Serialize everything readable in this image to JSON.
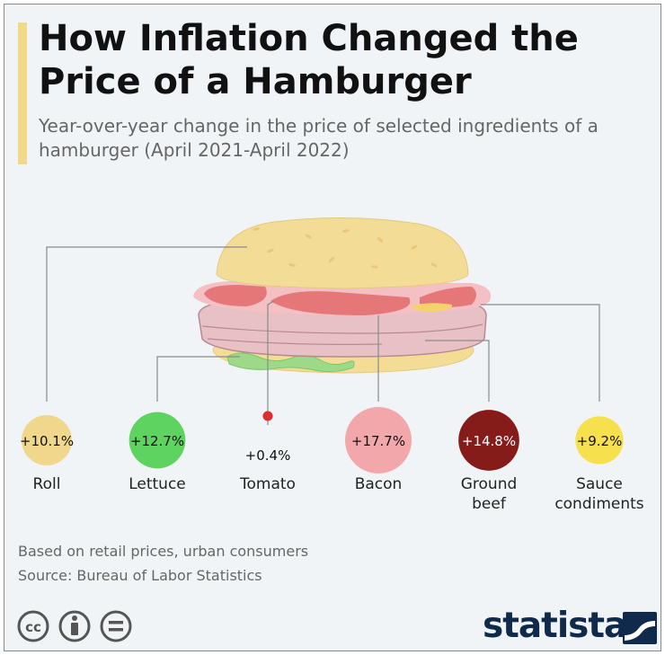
{
  "header": {
    "title": "How Inflation Changed the Price of a Hamburger",
    "subtitle": "Year-over-year change in the price of selected ingredients of a hamburger (April 2021-April 2022)"
  },
  "footer": {
    "note": "Based on retail prices, urban consumers",
    "source": "Source: Bureau of Labor Statistics",
    "brand": "statista"
  },
  "icons": [
    "creative-commons-icon",
    "attribution-icon",
    "no-derivatives-icon"
  ],
  "chart_data": {
    "type": "bubble",
    "title": "How Inflation Changed the Price of a Hamburger",
    "subtitle": "Year-over-year change in the price of selected ingredients of a hamburger (April 2021-April 2022)",
    "unit": "%",
    "categories": [
      "Roll",
      "Lettuce",
      "Tomato",
      "Bacon",
      "Ground beef",
      "Sauce condiments"
    ],
    "values": [
      10.1,
      12.7,
      0.4,
      17.7,
      14.8,
      9.2
    ],
    "labels": [
      "+10.1%",
      "+12.7%",
      "+0.4%",
      "+17.7%",
      "+14.8%",
      "+9.2%"
    ],
    "colors": [
      "#f0d78c",
      "#5fd35f",
      "#dc3030",
      "#f2a7aa",
      "#851c1a",
      "#f7e04d"
    ]
  }
}
